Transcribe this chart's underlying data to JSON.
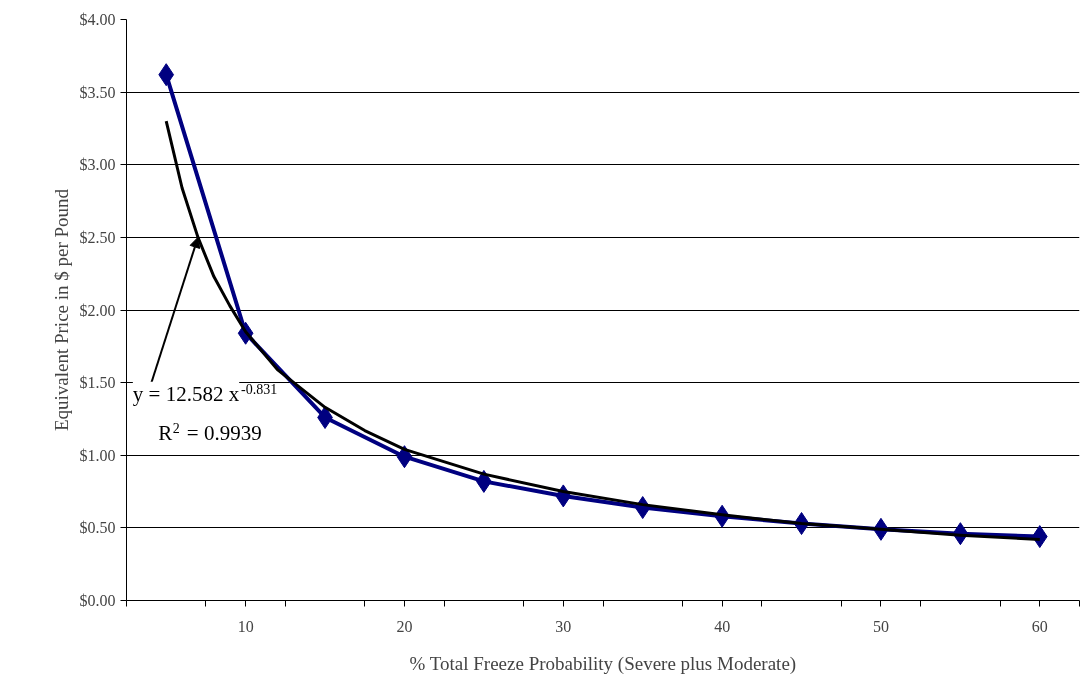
{
  "chart_data": {
    "type": "line",
    "xlabel": "% Total Freeze Probability (Severe plus Moderate)",
    "ylabel": "Equivalent Price in $ per Pound",
    "x": [
      5,
      10,
      15,
      20,
      25,
      30,
      35,
      40,
      45,
      50,
      55,
      60
    ],
    "series": [
      {
        "color": "#000080",
        "marker": "diamond",
        "values": [
          3.62,
          1.84,
          1.26,
          0.99,
          0.82,
          0.72,
          0.64,
          0.58,
          0.53,
          0.49,
          0.46,
          0.44
        ]
      },
      {
        "color": "#000000",
        "marker": "none",
        "x": [
          5,
          6,
          7,
          8,
          9,
          10,
          12,
          15,
          17.5,
          20,
          25,
          30,
          35,
          40,
          45,
          50,
          55,
          60
        ],
        "values": [
          3.3,
          2.84,
          2.5,
          2.23,
          2.03,
          1.85,
          1.59,
          1.33,
          1.17,
          1.04,
          0.87,
          0.75,
          0.66,
          0.59,
          0.53,
          0.49,
          0.45,
          0.42
        ]
      }
    ],
    "xlim": [
      2.5,
      62.5
    ],
    "xticks": [
      {
        "value": 2.5,
        "label": null
      },
      {
        "value": 7.5,
        "label": null
      },
      10,
      {
        "value": 12.5,
        "label": null
      },
      {
        "value": 17.5,
        "label": null
      },
      20,
      {
        "value": 22.5,
        "label": null
      },
      {
        "value": 27.5,
        "label": null
      },
      30,
      {
        "value": 32.5,
        "label": null
      },
      {
        "value": 37.5,
        "label": null
      },
      40,
      {
        "value": 42.5,
        "label": null
      },
      {
        "value": 47.5,
        "label": null
      },
      50,
      {
        "value": 52.5,
        "label": null
      },
      {
        "value": 57.5,
        "label": null
      },
      60,
      {
        "value": 62.5,
        "label": null
      }
    ],
    "ylim": [
      0,
      4
    ],
    "yticks": [
      {
        "value": 0,
        "label": "$0.00"
      },
      {
        "value": 0.5,
        "label": "$0.50"
      },
      {
        "value": 1,
        "label": "$1.00"
      },
      {
        "value": 1.5,
        "label": "$1.50"
      },
      {
        "value": 2,
        "label": "$2.00"
      },
      {
        "value": 2.5,
        "label": "$2.50"
      },
      {
        "value": 3,
        "label": "$3.00"
      },
      {
        "value": 3.5,
        "label": "$3.50"
      },
      {
        "value": 4,
        "label": "$4.00"
      }
    ],
    "grid": "y",
    "annotations": [
      {
        "text": "y = 12.582 x$^{-0.831}$",
        "x": 7,
        "y": 2.5
      },
      "R$^{2}$ = 0.9939"
    ]
  }
}
